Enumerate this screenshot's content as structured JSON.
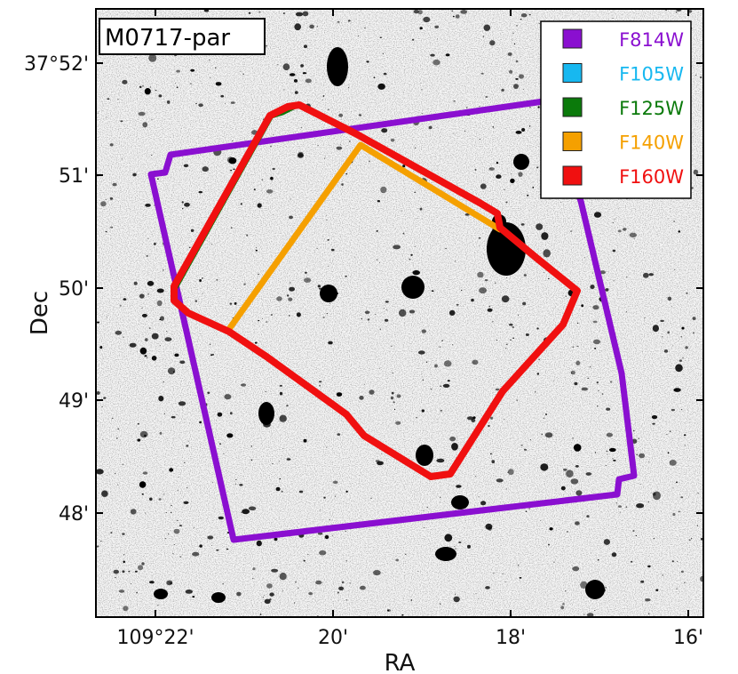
{
  "field_name": "M0717-par",
  "axes": {
    "xlabel": "RA",
    "ylabel": "Dec",
    "x_ticks": [
      "109°22'",
      "20'",
      "18'",
      "16'"
    ],
    "y_ticks": [
      "37°52'",
      "51'",
      "50'",
      "49'",
      "48'"
    ]
  },
  "legend": {
    "placement": "top-right",
    "items": [
      {
        "label": "F814W",
        "color": "#8a0fd0"
      },
      {
        "label": "F105W",
        "color": "#17b8f0"
      },
      {
        "label": "F125W",
        "color": "#0b7a0b"
      },
      {
        "label": "F140W",
        "color": "#f5a000"
      },
      {
        "label": "F160W",
        "color": "#f01010"
      }
    ]
  },
  "footprint_colors": {
    "f814w": "#8a0fd0",
    "f125w": "#0b7a0b",
    "f140w": "#f5a000",
    "f160w": "#f01010"
  }
}
